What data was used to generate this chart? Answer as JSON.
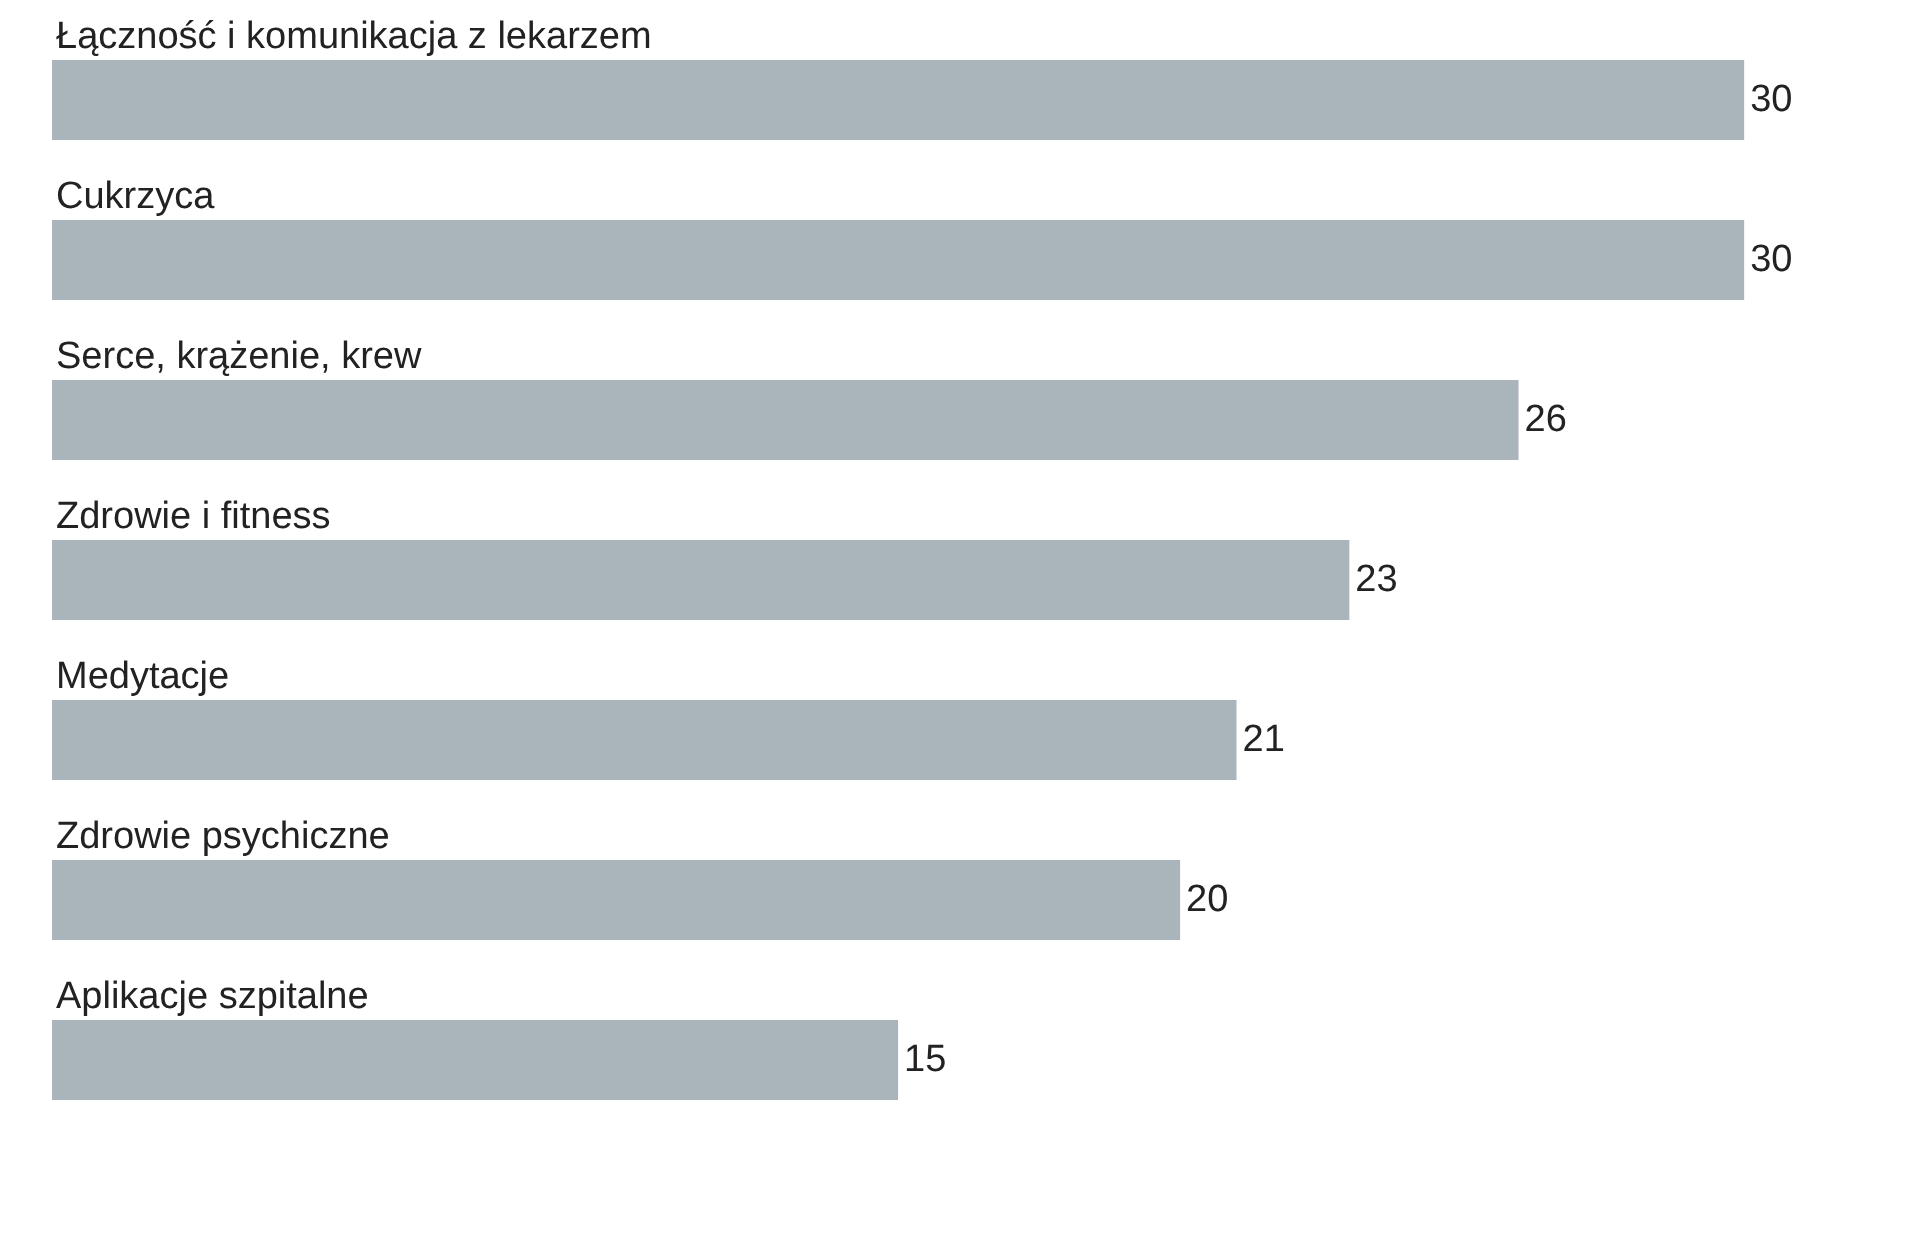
{
  "chart_data": {
    "type": "bar",
    "orientation": "horizontal",
    "categories": [
      "Łączność i komunikacja z lekarzem",
      "Cukrzyca",
      "Serce, krążenie, krew",
      "Zdrowie i fitness",
      "Medytacje",
      "Zdrowie psychiczne",
      "Aplikacje szpitalne"
    ],
    "values": [
      30,
      30,
      26,
      23,
      21,
      20,
      15
    ],
    "color": "#a9b4bb",
    "data_labels": true,
    "grid": false,
    "legend": false
  }
}
